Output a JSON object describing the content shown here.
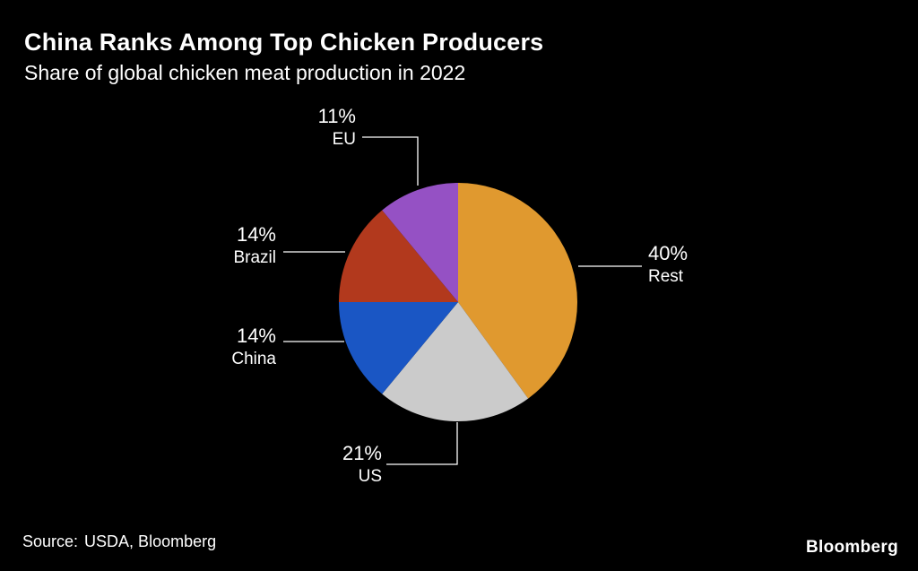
{
  "header": {
    "title": "China Ranks Among Top Chicken Producers",
    "subtitle": "Share of global chicken meat production in 2022"
  },
  "chart_data": {
    "type": "pie",
    "title": "China Ranks Among Top Chicken Producers",
    "subtitle": "Share of global chicken meat production in 2022",
    "start_angle_deg": 0,
    "direction": "clockwise",
    "legend_position": "leader-line labels around pie",
    "background_color": "#000000",
    "text_color": "#ffffff",
    "slices": [
      {
        "label": "Rest",
        "value": 40,
        "pct_text": "40%",
        "color": "#E0992F"
      },
      {
        "label": "US",
        "value": 21,
        "pct_text": "21%",
        "color": "#CBCBCB"
      },
      {
        "label": "China",
        "value": 14,
        "pct_text": "14%",
        "color": "#1A56C4"
      },
      {
        "label": "Brazil",
        "value": 14,
        "pct_text": "14%",
        "color": "#B2391D"
      },
      {
        "label": "EU",
        "value": 11,
        "pct_text": "11%",
        "color": "#9551C4"
      }
    ]
  },
  "footer": {
    "source_label": "Source:",
    "source_value": "USDA, Bloomberg",
    "brand": "Bloomberg"
  }
}
